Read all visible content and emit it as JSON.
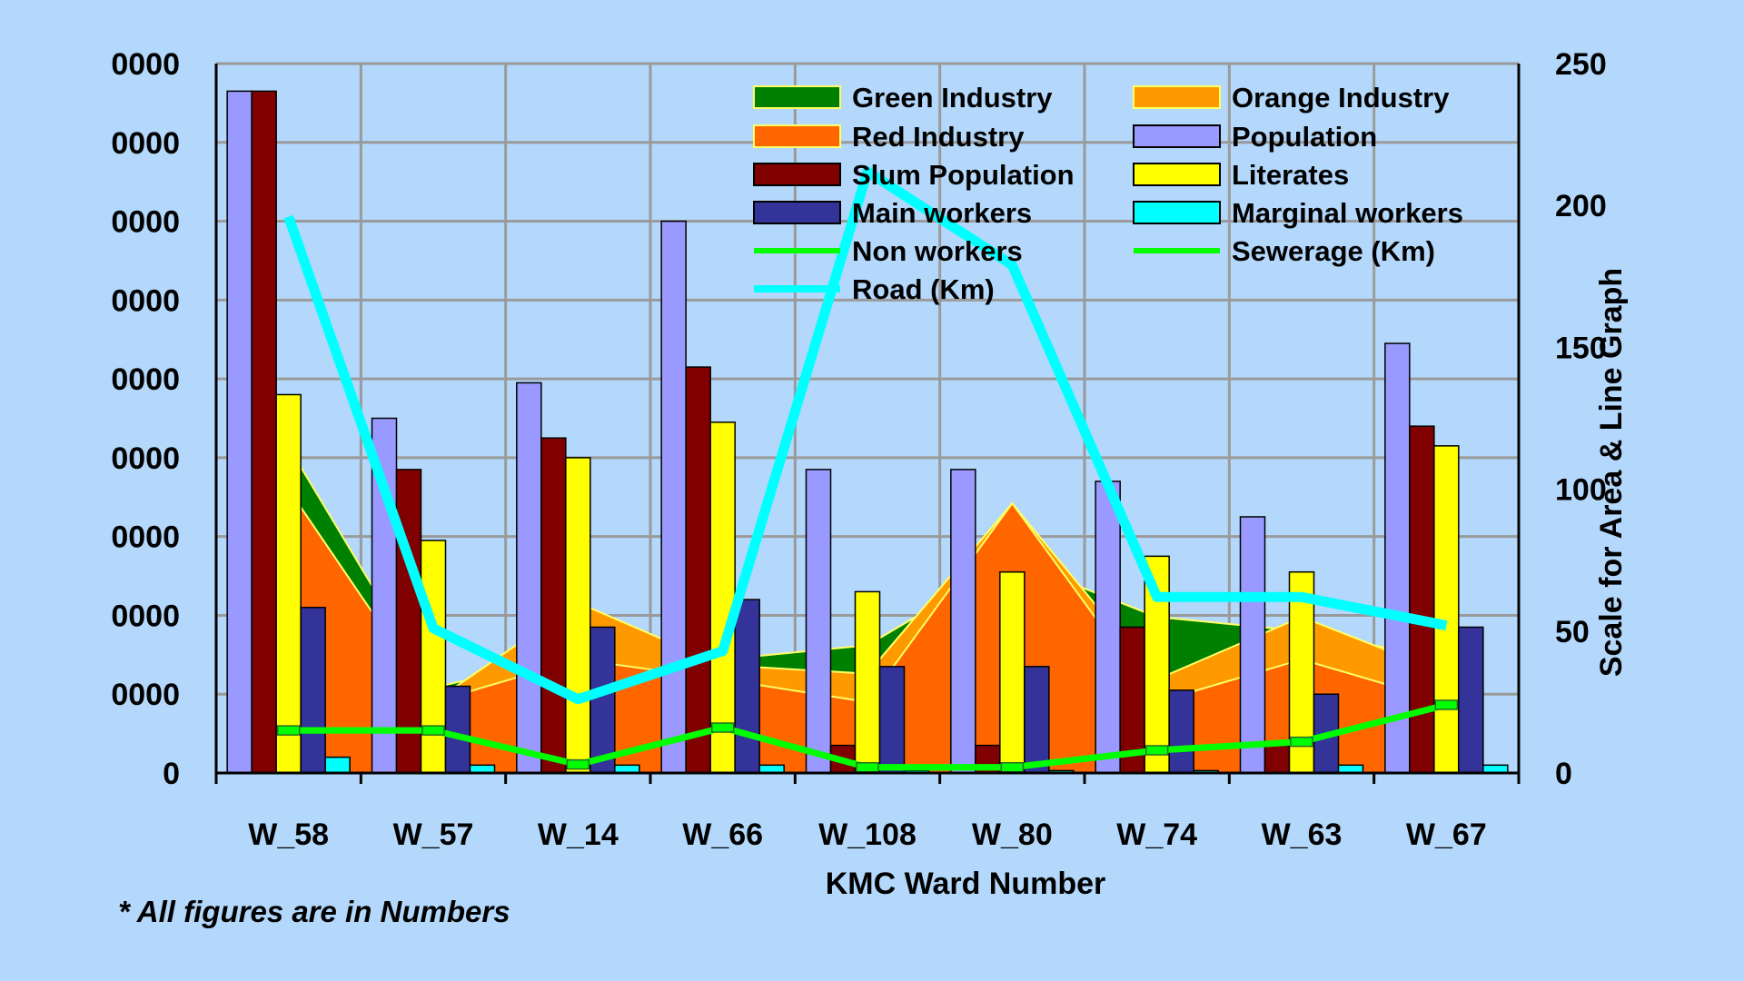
{
  "chart_data": {
    "type": "bar",
    "categories": [
      "W_58",
      "W_57",
      "W_14",
      "W_66",
      "W_108",
      "W_80",
      "W_74",
      "W_63",
      "W_67"
    ],
    "xlabel": "KMC Ward Number",
    "y2label": "Scale for Area & Line Graph",
    "ylim": [
      0,
      90000
    ],
    "y2lim": [
      0,
      250
    ],
    "y_ticks": [
      "0",
      "0000",
      "0000",
      "0000",
      "0000",
      "0000",
      "0000",
      "0000",
      "0000",
      "0000"
    ],
    "y2_ticks": [
      "0",
      "50",
      "100",
      "150",
      "200",
      "250"
    ],
    "grid": true,
    "legend_position": "top-right inside plot",
    "note": "* All figures are in Numbers",
    "bar_series": [
      {
        "name": "Population",
        "color": "#9999ff",
        "values": [
          86500,
          45000,
          49500,
          70000,
          38500,
          38500,
          37000,
          32500,
          54500
        ]
      },
      {
        "name": "Slum Population",
        "color": "#800000",
        "values": [
          86500,
          38500,
          42500,
          51500,
          3500,
          3500,
          18500,
          3500,
          44000
        ]
      },
      {
        "name": "Literates",
        "color": "#ffff00",
        "values": [
          48000,
          29500,
          40000,
          44500,
          23000,
          25500,
          27500,
          25500,
          41500
        ]
      },
      {
        "name": "Main workers",
        "color": "#333399",
        "values": [
          21000,
          11000,
          18500,
          22000,
          13500,
          13500,
          10500,
          10000,
          18500
        ]
      },
      {
        "name": "Marginal workers",
        "color": "#00ffff",
        "values": [
          2000,
          1000,
          1000,
          1000,
          300,
          300,
          300,
          1000,
          1000
        ]
      }
    ],
    "area_series": [
      {
        "name": "Green Industry",
        "color": "#008000",
        "values": [
          115,
          30,
          42,
          40,
          45,
          75,
          55,
          50,
          40
        ]
      },
      {
        "name": "Orange Industry",
        "color": "#ff9900",
        "values": [
          95,
          25,
          60,
          38,
          35,
          95,
          33,
          55,
          35
        ]
      },
      {
        "name": "Red Industry",
        "color": "#ff6600",
        "values": [
          100,
          25,
          40,
          33,
          25,
          95,
          25,
          40,
          25
        ]
      }
    ],
    "line_series": [
      {
        "name": "Non workers",
        "color": "#00ff00",
        "values": [
          15,
          15,
          3,
          16,
          2,
          2,
          8,
          11,
          24
        ]
      },
      {
        "name": "Sewerage (Km)",
        "color": "#00ff00",
        "values": [
          15,
          15,
          3,
          16,
          2,
          2,
          8,
          11,
          24
        ]
      },
      {
        "name": "Road (Km)",
        "color": "#00ffff",
        "values": [
          196,
          51,
          26,
          43,
          212,
          179,
          62,
          62,
          52
        ]
      }
    ],
    "legend_order": [
      "Green Industry",
      "Orange Industry",
      "Red Industry",
      "Population",
      "Slum Population",
      "Literates",
      "Main workers",
      "Marginal workers",
      "Non workers",
      "Sewerage (Km)",
      "Road (Km)"
    ]
  }
}
